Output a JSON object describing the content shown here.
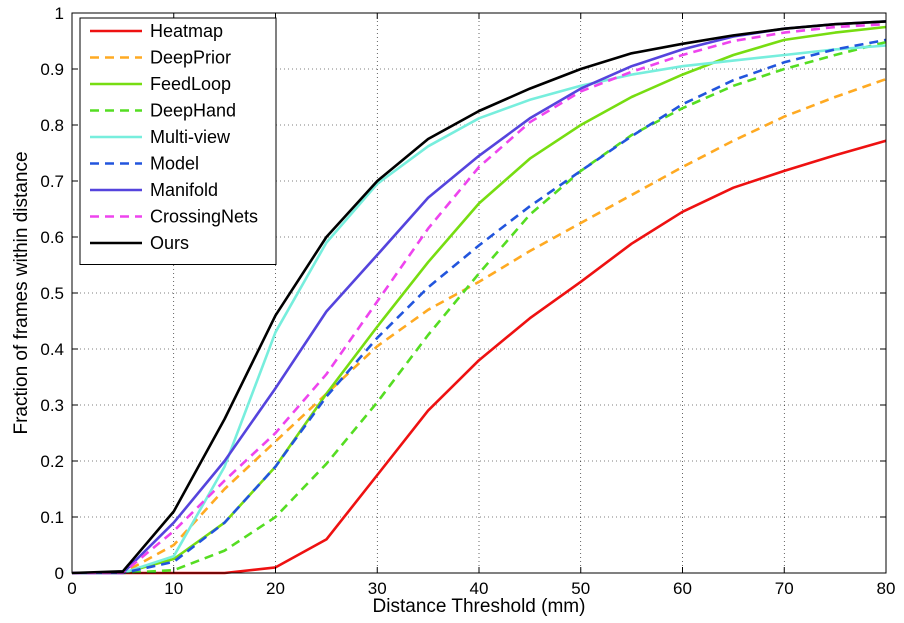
{
  "chart_data": {
    "type": "line",
    "title": "",
    "xlabel": "Distance Threshold (mm)",
    "ylabel": "Fraction of frames within distance",
    "xlim": [
      0,
      80
    ],
    "ylim": [
      0,
      1
    ],
    "grid": true,
    "legend_position": "top-left",
    "x_ticks": [
      0,
      10,
      20,
      30,
      40,
      50,
      60,
      70,
      80
    ],
    "y_ticks": [
      0,
      0.1,
      0.2,
      0.3,
      0.4,
      0.5,
      0.6,
      0.7,
      0.8,
      0.9,
      1
    ],
    "x_tick_labels": [
      "0",
      "10",
      "20",
      "30",
      "40",
      "50",
      "60",
      "70",
      "80"
    ],
    "y_tick_labels": [
      "0",
      "0.1",
      "0.2",
      "0.3",
      "0.4",
      "0.5",
      "0.6",
      "0.7",
      "0.8",
      "0.9",
      "1"
    ],
    "x": [
      0,
      5,
      10,
      15,
      20,
      25,
      30,
      35,
      40,
      45,
      50,
      55,
      60,
      65,
      70,
      75,
      80
    ],
    "series": [
      {
        "name": "Heatmap",
        "color": "#ee1111",
        "dashed": false,
        "values": [
          0,
          0,
          0,
          0,
          0.01,
          0.06,
          0.175,
          0.29,
          0.38,
          0.455,
          0.52,
          0.588,
          0.645,
          0.688,
          0.718,
          0.746,
          0.772
        ]
      },
      {
        "name": "DeepPrior",
        "color": "#ffaa22",
        "dashed": true,
        "values": [
          0,
          0,
          0.05,
          0.15,
          0.235,
          0.32,
          0.405,
          0.47,
          0.52,
          0.575,
          0.625,
          0.675,
          0.725,
          0.772,
          0.815,
          0.85,
          0.882
        ]
      },
      {
        "name": "FeedLoop",
        "color": "#77dd11",
        "dashed": false,
        "values": [
          0,
          0,
          0.025,
          0.09,
          0.19,
          0.32,
          0.44,
          0.555,
          0.66,
          0.74,
          0.8,
          0.85,
          0.89,
          0.925,
          0.952,
          0.965,
          0.975
        ]
      },
      {
        "name": "DeepHand",
        "color": "#55dd22",
        "dashed": true,
        "values": [
          0,
          0,
          0.005,
          0.04,
          0.1,
          0.195,
          0.305,
          0.425,
          0.535,
          0.64,
          0.718,
          0.782,
          0.83,
          0.87,
          0.9,
          0.925,
          0.948
        ]
      },
      {
        "name": "Multi-view",
        "color": "#77eedd",
        "dashed": false,
        "values": [
          0,
          0,
          0.03,
          0.19,
          0.43,
          0.59,
          0.695,
          0.762,
          0.812,
          0.845,
          0.87,
          0.89,
          0.905,
          0.915,
          0.925,
          0.935,
          0.942
        ]
      },
      {
        "name": "Model",
        "color": "#2255dd",
        "dashed": true,
        "values": [
          0,
          0,
          0.02,
          0.09,
          0.19,
          0.315,
          0.42,
          0.51,
          0.585,
          0.655,
          0.718,
          0.78,
          0.837,
          0.88,
          0.912,
          0.935,
          0.952
        ]
      },
      {
        "name": "Manifold",
        "color": "#5544dd",
        "dashed": false,
        "values": [
          0,
          0,
          0.09,
          0.2,
          0.33,
          0.467,
          0.568,
          0.67,
          0.745,
          0.812,
          0.865,
          0.905,
          0.935,
          0.958,
          0.972,
          0.98,
          0.985
        ]
      },
      {
        "name": "CrossingNets",
        "color": "#ee44ee",
        "dashed": true,
        "values": [
          0,
          0,
          0.075,
          0.165,
          0.25,
          0.355,
          0.485,
          0.615,
          0.725,
          0.805,
          0.86,
          0.895,
          0.925,
          0.95,
          0.965,
          0.975,
          0.98
        ]
      },
      {
        "name": "Ours",
        "color": "#000000",
        "dashed": false,
        "values": [
          0,
          0.003,
          0.11,
          0.275,
          0.46,
          0.6,
          0.7,
          0.775,
          0.825,
          0.865,
          0.9,
          0.928,
          0.945,
          0.96,
          0.972,
          0.98,
          0.985
        ]
      }
    ]
  }
}
